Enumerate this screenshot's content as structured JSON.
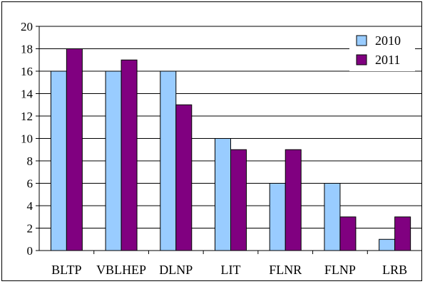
{
  "chart_data": {
    "type": "bar",
    "title": "",
    "xlabel": "",
    "ylabel": "",
    "categories": [
      "BLTP",
      "VBLHEP",
      "DLNP",
      "LIT",
      "FLNR",
      "FLNP",
      "LRB"
    ],
    "series": [
      {
        "name": "2010",
        "values": [
          16,
          16,
          16,
          10,
          6,
          6,
          1
        ],
        "color": "#99ccff"
      },
      {
        "name": "2011",
        "values": [
          18,
          17,
          13,
          9,
          9,
          3,
          3
        ],
        "color": "#800080"
      }
    ],
    "ylim": [
      0,
      20
    ],
    "yticks": [
      "0",
      "2",
      "4",
      "6",
      "8",
      "10",
      "12",
      "14",
      "16",
      "18",
      "20"
    ],
    "grid": true,
    "legend_position": "top-right"
  }
}
